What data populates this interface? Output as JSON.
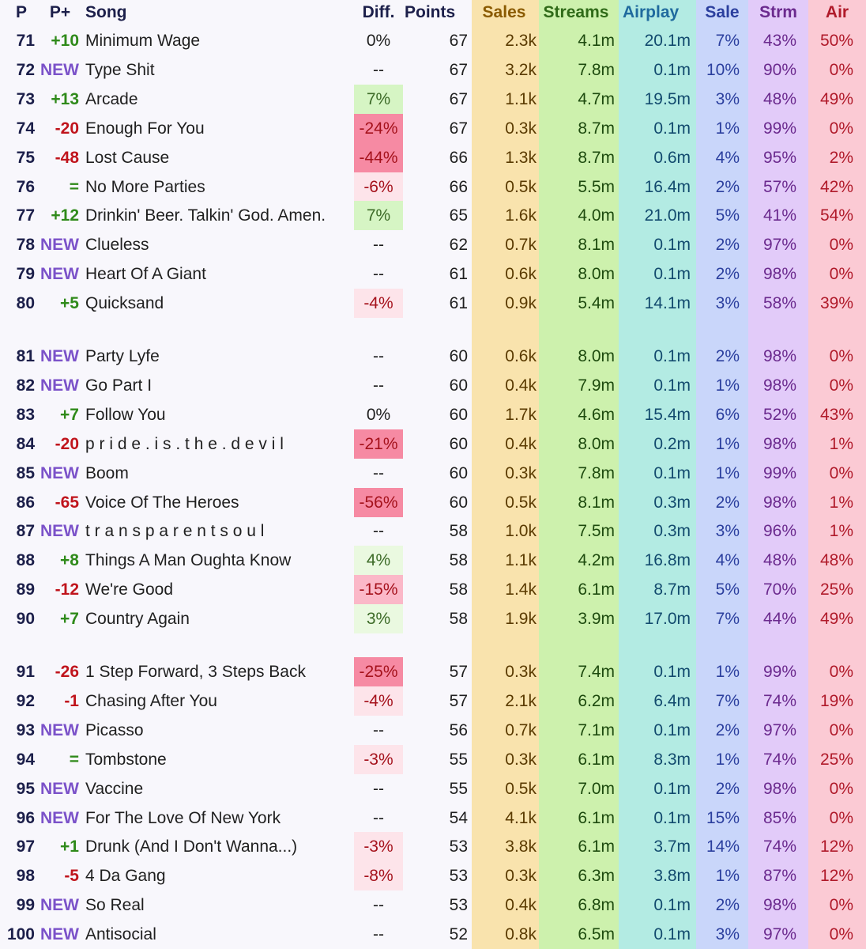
{
  "columns": {
    "p": "P",
    "pplus": "P+",
    "song": "Song",
    "diff": "Diff.",
    "points": "Points",
    "sales": "Sales",
    "streams": "Streams",
    "airplay": "Airplay",
    "sale": "Sale",
    "strm": "Strm",
    "air": "Air"
  },
  "colors": {
    "up": "#2f8a1a",
    "down": "#c0141c",
    "new": "#7b52c9",
    "same": "#2f8a1a",
    "diff_pos_light": "#eaf9e0",
    "diff_pos": "#d6f5c4",
    "diff_neg_light": "#fde4ea",
    "diff_neg_mid": "#fbb8c8",
    "diff_neg_strong": "#f68aa3"
  },
  "rows": [
    {
      "p": "71",
      "pp": "+10",
      "song": "Minimum Wage",
      "diff": "0%",
      "pts": "67",
      "sales": "2.3k",
      "streams": "4.1m",
      "airplay": "20.1m",
      "sale": "7%",
      "strm": "43%",
      "air": "50%"
    },
    {
      "p": "72",
      "pp": "NEW",
      "song": "Type Shit",
      "diff": "--",
      "pts": "67",
      "sales": "3.2k",
      "streams": "7.8m",
      "airplay": "0.1m",
      "sale": "10%",
      "strm": "90%",
      "air": "0%"
    },
    {
      "p": "73",
      "pp": "+13",
      "song": "Arcade",
      "diff": "7%",
      "pts": "67",
      "sales": "1.1k",
      "streams": "4.7m",
      "airplay": "19.5m",
      "sale": "3%",
      "strm": "48%",
      "air": "49%"
    },
    {
      "p": "74",
      "pp": "-20",
      "song": "Enough For You",
      "diff": "-24%",
      "pts": "67",
      "sales": "0.3k",
      "streams": "8.7m",
      "airplay": "0.1m",
      "sale": "1%",
      "strm": "99%",
      "air": "0%"
    },
    {
      "p": "75",
      "pp": "-48",
      "song": "Lost Cause",
      "diff": "-44%",
      "pts": "66",
      "sales": "1.3k",
      "streams": "8.7m",
      "airplay": "0.6m",
      "sale": "4%",
      "strm": "95%",
      "air": "2%"
    },
    {
      "p": "76",
      "pp": "=",
      "song": "No More Parties",
      "diff": "-6%",
      "pts": "66",
      "sales": "0.5k",
      "streams": "5.5m",
      "airplay": "16.4m",
      "sale": "2%",
      "strm": "57%",
      "air": "42%"
    },
    {
      "p": "77",
      "pp": "+12",
      "song": "Drinkin' Beer. Talkin' God. Amen.",
      "diff": "7%",
      "pts": "65",
      "sales": "1.6k",
      "streams": "4.0m",
      "airplay": "21.0m",
      "sale": "5%",
      "strm": "41%",
      "air": "54%"
    },
    {
      "p": "78",
      "pp": "NEW",
      "song": "Clueless",
      "diff": "--",
      "pts": "62",
      "sales": "0.7k",
      "streams": "8.1m",
      "airplay": "0.1m",
      "sale": "2%",
      "strm": "97%",
      "air": "0%"
    },
    {
      "p": "79",
      "pp": "NEW",
      "song": "Heart Of A Giant",
      "diff": "--",
      "pts": "61",
      "sales": "0.6k",
      "streams": "8.0m",
      "airplay": "0.1m",
      "sale": "2%",
      "strm": "98%",
      "air": "0%"
    },
    {
      "p": "80",
      "pp": "+5",
      "song": "Quicksand",
      "diff": "-4%",
      "pts": "61",
      "sales": "0.9k",
      "streams": "5.4m",
      "airplay": "14.1m",
      "sale": "3%",
      "strm": "58%",
      "air": "39%"
    },
    {
      "p": "81",
      "pp": "NEW",
      "song": "Party Lyfe",
      "diff": "--",
      "pts": "60",
      "sales": "0.6k",
      "streams": "8.0m",
      "airplay": "0.1m",
      "sale": "2%",
      "strm": "98%",
      "air": "0%"
    },
    {
      "p": "82",
      "pp": "NEW",
      "song": "Go Part I",
      "diff": "--",
      "pts": "60",
      "sales": "0.4k",
      "streams": "7.9m",
      "airplay": "0.1m",
      "sale": "1%",
      "strm": "98%",
      "air": "0%"
    },
    {
      "p": "83",
      "pp": "+7",
      "song": "Follow You",
      "diff": "0%",
      "pts": "60",
      "sales": "1.7k",
      "streams": "4.6m",
      "airplay": "15.4m",
      "sale": "6%",
      "strm": "52%",
      "air": "43%"
    },
    {
      "p": "84",
      "pp": "-20",
      "song": "p r i d e . i s . t h e . d e v i l",
      "diff": "-21%",
      "pts": "60",
      "sales": "0.4k",
      "streams": "8.0m",
      "airplay": "0.2m",
      "sale": "1%",
      "strm": "98%",
      "air": "1%"
    },
    {
      "p": "85",
      "pp": "NEW",
      "song": "Boom",
      "diff": "--",
      "pts": "60",
      "sales": "0.3k",
      "streams": "7.8m",
      "airplay": "0.1m",
      "sale": "1%",
      "strm": "99%",
      "air": "0%"
    },
    {
      "p": "86",
      "pp": "-65",
      "song": "Voice Of The Heroes",
      "diff": "-56%",
      "pts": "60",
      "sales": "0.5k",
      "streams": "8.1m",
      "airplay": "0.3m",
      "sale": "2%",
      "strm": "98%",
      "air": "1%"
    },
    {
      "p": "87",
      "pp": "NEW",
      "song": "t r a n s p a r e n t s o u l",
      "diff": "--",
      "pts": "58",
      "sales": "1.0k",
      "streams": "7.5m",
      "airplay": "0.3m",
      "sale": "3%",
      "strm": "96%",
      "air": "1%"
    },
    {
      "p": "88",
      "pp": "+8",
      "song": "Things A Man Oughta Know",
      "diff": "4%",
      "pts": "58",
      "sales": "1.1k",
      "streams": "4.2m",
      "airplay": "16.8m",
      "sale": "4%",
      "strm": "48%",
      "air": "48%"
    },
    {
      "p": "89",
      "pp": "-12",
      "song": "We're Good",
      "diff": "-15%",
      "pts": "58",
      "sales": "1.4k",
      "streams": "6.1m",
      "airplay": "8.7m",
      "sale": "5%",
      "strm": "70%",
      "air": "25%"
    },
    {
      "p": "90",
      "pp": "+7",
      "song": "Country Again",
      "diff": "3%",
      "pts": "58",
      "sales": "1.9k",
      "streams": "3.9m",
      "airplay": "17.0m",
      "sale": "7%",
      "strm": "44%",
      "air": "49%"
    },
    {
      "p": "91",
      "pp": "-26",
      "song": "1 Step Forward, 3 Steps Back",
      "diff": "-25%",
      "pts": "57",
      "sales": "0.3k",
      "streams": "7.4m",
      "airplay": "0.1m",
      "sale": "1%",
      "strm": "99%",
      "air": "0%"
    },
    {
      "p": "92",
      "pp": "-1",
      "song": "Chasing After You",
      "diff": "-4%",
      "pts": "57",
      "sales": "2.1k",
      "streams": "6.2m",
      "airplay": "6.4m",
      "sale": "7%",
      "strm": "74%",
      "air": "19%"
    },
    {
      "p": "93",
      "pp": "NEW",
      "song": "Picasso",
      "diff": "--",
      "pts": "56",
      "sales": "0.7k",
      "streams": "7.1m",
      "airplay": "0.1m",
      "sale": "2%",
      "strm": "97%",
      "air": "0%"
    },
    {
      "p": "94",
      "pp": "=",
      "song": "Tombstone",
      "diff": "-3%",
      "pts": "55",
      "sales": "0.3k",
      "streams": "6.1m",
      "airplay": "8.3m",
      "sale": "1%",
      "strm": "74%",
      "air": "25%"
    },
    {
      "p": "95",
      "pp": "NEW",
      "song": "Vaccine",
      "diff": "--",
      "pts": "55",
      "sales": "0.5k",
      "streams": "7.0m",
      "airplay": "0.1m",
      "sale": "2%",
      "strm": "98%",
      "air": "0%"
    },
    {
      "p": "96",
      "pp": "NEW",
      "song": "For The Love Of New York",
      "diff": "--",
      "pts": "54",
      "sales": "4.1k",
      "streams": "6.1m",
      "airplay": "0.1m",
      "sale": "15%",
      "strm": "85%",
      "air": "0%"
    },
    {
      "p": "97",
      "pp": "+1",
      "song": "Drunk (And I Don't Wanna...)",
      "diff": "-3%",
      "pts": "53",
      "sales": "3.8k",
      "streams": "6.1m",
      "airplay": "3.7m",
      "sale": "14%",
      "strm": "74%",
      "air": "12%"
    },
    {
      "p": "98",
      "pp": "-5",
      "song": "4 Da Gang",
      "diff": "-8%",
      "pts": "53",
      "sales": "0.3k",
      "streams": "6.3m",
      "airplay": "3.8m",
      "sale": "1%",
      "strm": "87%",
      "air": "12%"
    },
    {
      "p": "99",
      "pp": "NEW",
      "song": "So Real",
      "diff": "--",
      "pts": "53",
      "sales": "0.4k",
      "streams": "6.8m",
      "airplay": "0.1m",
      "sale": "2%",
      "strm": "98%",
      "air": "0%"
    },
    {
      "p": "100",
      "pp": "NEW",
      "song": "Antisocial",
      "diff": "--",
      "pts": "52",
      "sales": "0.8k",
      "streams": "6.5m",
      "airplay": "0.1m",
      "sale": "3%",
      "strm": "97%",
      "air": "0%"
    }
  ]
}
